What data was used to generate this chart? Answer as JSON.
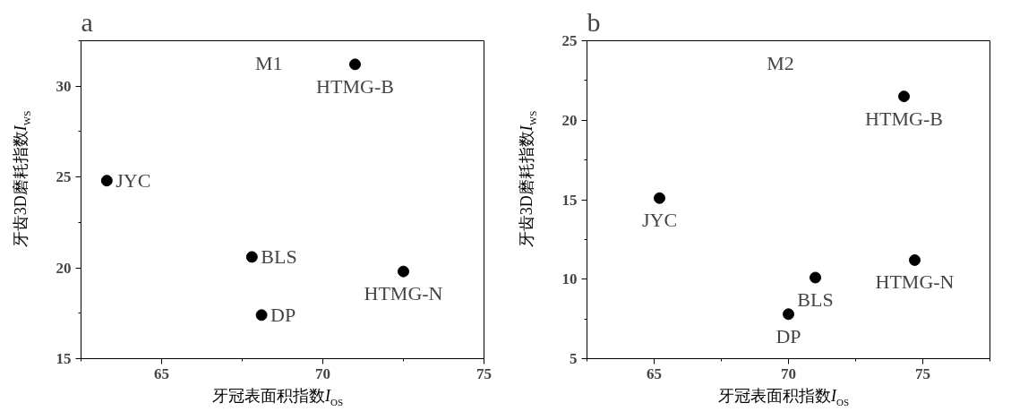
{
  "chart_data": [
    {
      "type": "scatter",
      "title": "a",
      "xlabel": "牙冠表面积指数I$_{OS}$",
      "ylabel": "牙齿3D磨耗指数I$_{WS}$",
      "marker": "circle",
      "grid": false,
      "x": [
        71.0,
        63.3,
        67.8,
        72.5,
        68.1
      ],
      "values": [
        31.2,
        24.8,
        20.6,
        19.8,
        17.4
      ],
      "color": "#000000",
      "xlim": [
        62.5,
        75
      ],
      "xticks": [
        65,
        70,
        75
      ],
      "ylim": [
        15,
        32.5
      ],
      "yticks": [
        15,
        20,
        25,
        30
      ],
      "annotations": [
        "M1",
        {
          "text": "HTMG-B",
          "x": 71.0,
          "y": 31.2
        },
        {
          "text": "JYC",
          "x": 63.3,
          "y": 24.8
        },
        {
          "text": "BLS",
          "x": 67.8,
          "y": 20.6
        },
        {
          "text": "HTMG-N",
          "x": 72.5,
          "y": 19.8
        },
        {
          "text": "DP",
          "x": 68.1,
          "y": 17.4
        }
      ]
    },
    {
      "type": "scatter",
      "title": "b",
      "xlabel": "牙冠表面积指数I$_{OS}$",
      "ylabel": "牙齿3D磨耗指数I$_{WS}$",
      "marker": "circle",
      "grid": false,
      "x": [
        74.3,
        65.2,
        71.0,
        74.7,
        70.0
      ],
      "values": [
        21.5,
        15.1,
        10.1,
        11.2,
        7.8
      ],
      "color": "#000000",
      "xlim": [
        62.5,
        77.5
      ],
      "xticks": [
        65,
        70,
        75
      ],
      "ylim": [
        5,
        25
      ],
      "yticks": [
        5,
        10,
        15,
        20,
        25
      ],
      "annotations": [
        "M2",
        {
          "text": "HTMG-B",
          "x": 74.3,
          "y": 21.5
        },
        {
          "text": "JYC",
          "x": 65.2,
          "y": 15.1
        },
        {
          "text": "BLS",
          "x": 71.0,
          "y": 10.1
        },
        {
          "text": "HTMG-N",
          "x": 74.7,
          "y": 11.2
        },
        {
          "text": "DP",
          "x": 70.0,
          "y": 7.8
        }
      ]
    }
  ]
}
